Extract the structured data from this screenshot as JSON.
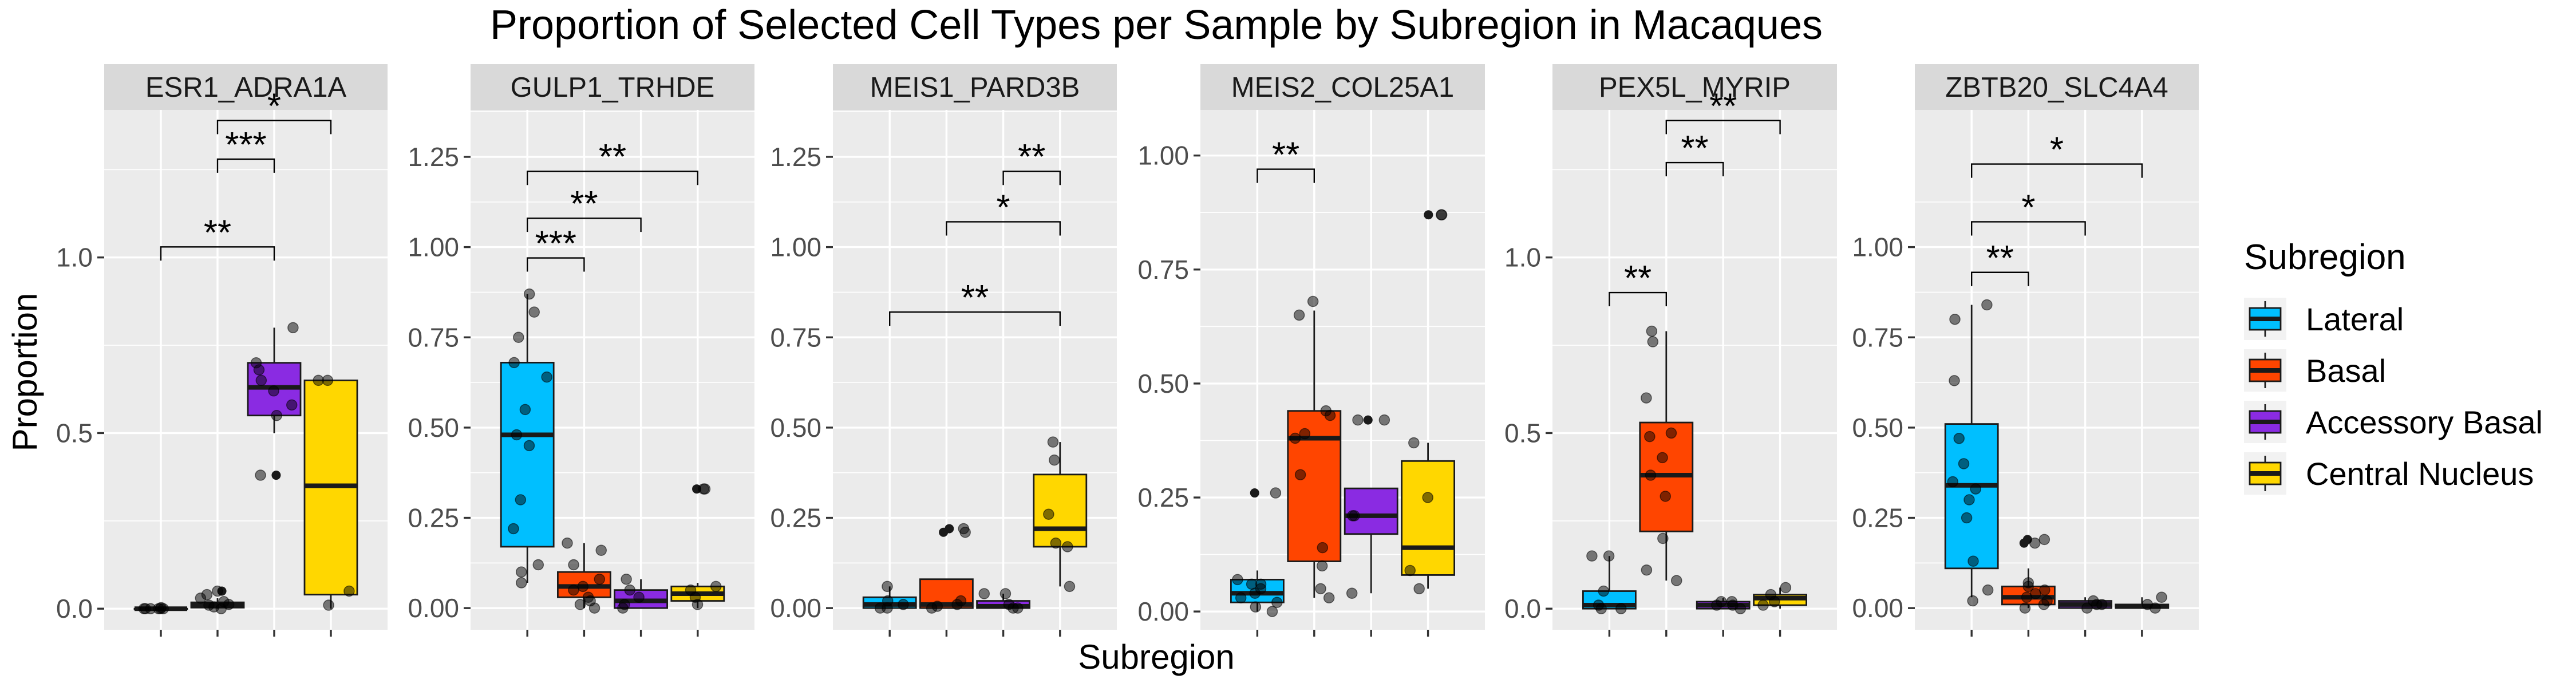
{
  "chart_data": {
    "type": "boxplot",
    "title": "Proportion of Selected Cell Types per Sample by Subregion in Macaques",
    "xlabel": "Subregion",
    "ylabel": "Proportion",
    "legend": {
      "title": "Subregion",
      "position": "right",
      "entries": [
        {
          "name": "Lateral",
          "color": "#00BFFF"
        },
        {
          "name": "Basal",
          "color": "#FF4500"
        },
        {
          "name": "Accessory Basal",
          "color": "#8A2BE2"
        },
        {
          "name": "Central Nucleus",
          "color": "#FFD700"
        }
      ]
    },
    "categories": [
      "Lateral",
      "Basal",
      "Accessory Basal",
      "Central Nucleus"
    ],
    "grid": true,
    "panels": [
      {
        "name": "ESR1_ADRA1A",
        "ylim": [
          -0.06,
          1.42
        ],
        "yticks": [
          0.0,
          0.5,
          1.0
        ],
        "ytick_labels": [
          "0.0",
          "0.5",
          "1.0"
        ],
        "boxes": [
          {
            "q1": 0.0,
            "median": 0.0,
            "q3": 0.0,
            "whisker_low": 0.0,
            "whisker_high": 0.0
          },
          {
            "q1": 0.003,
            "median": 0.01,
            "q3": 0.018,
            "whisker_low": 0.0,
            "whisker_high": 0.03
          },
          {
            "q1": 0.55,
            "median": 0.63,
            "q3": 0.7,
            "whisker_low": 0.5,
            "whisker_high": 0.8
          },
          {
            "q1": 0.04,
            "median": 0.35,
            "q3": 0.65,
            "whisker_low": 0.0,
            "whisker_high": 0.65
          }
        ],
        "outliers": [
          [],
          [
            0.05
          ],
          [
            0.38
          ],
          []
        ],
        "points": [
          [
            0.0,
            0.0,
            0.0,
            0.0,
            0.0,
            0.003,
            0.0
          ],
          [
            0.0,
            0.005,
            0.01,
            0.012,
            0.02,
            0.03,
            0.05,
            0.04
          ],
          [
            0.38,
            0.55,
            0.62,
            0.65,
            0.7,
            0.58,
            0.8,
            0.68
          ],
          [
            0.01,
            0.05,
            0.65,
            0.65
          ]
        ],
        "comparisons": [
          {
            "from": 0,
            "to": 2,
            "y": 1.03,
            "label": "**"
          },
          {
            "from": 1,
            "to": 2,
            "y": 1.28,
            "label": "***"
          },
          {
            "from": 1,
            "to": 3,
            "y": 1.39,
            "label": "*"
          }
        ]
      },
      {
        "name": "GULP1_TRHDE",
        "ylim": [
          -0.06,
          1.38
        ],
        "yticks": [
          0.0,
          0.25,
          0.5,
          0.75,
          1.0,
          1.25
        ],
        "ytick_labels": [
          "0.00",
          "0.25",
          "0.50",
          "0.75",
          "1.00",
          "1.25"
        ],
        "boxes": [
          {
            "q1": 0.17,
            "median": 0.48,
            "q3": 0.68,
            "whisker_low": 0.07,
            "whisker_high": 0.87
          },
          {
            "q1": 0.03,
            "median": 0.06,
            "q3": 0.1,
            "whisker_low": 0.0,
            "whisker_high": 0.18
          },
          {
            "q1": 0.0,
            "median": 0.02,
            "q3": 0.05,
            "whisker_low": 0.0,
            "whisker_high": 0.08
          },
          {
            "q1": 0.02,
            "median": 0.04,
            "q3": 0.06,
            "whisker_low": 0.0,
            "whisker_high": 0.07
          }
        ],
        "outliers": [
          [],
          [],
          [],
          [
            0.33
          ]
        ],
        "points": [
          [
            0.87,
            0.82,
            0.75,
            0.68,
            0.64,
            0.55,
            0.48,
            0.45,
            0.3,
            0.22,
            0.12,
            0.07,
            0.1
          ],
          [
            0.18,
            0.16,
            0.12,
            0.08,
            0.06,
            0.05,
            0.03,
            0.01,
            0.0,
            0.02
          ],
          [
            0.08,
            0.05,
            0.03,
            0.01,
            0.0
          ],
          [
            0.33,
            0.33,
            0.06,
            0.05,
            0.03,
            0.01
          ]
        ],
        "comparisons": [
          {
            "from": 0,
            "to": 1,
            "y": 0.97,
            "label": "***"
          },
          {
            "from": 0,
            "to": 2,
            "y": 1.08,
            "label": "**"
          },
          {
            "from": 0,
            "to": 3,
            "y": 1.21,
            "label": "**"
          }
        ]
      },
      {
        "name": "MEIS1_PARD3B",
        "ylim": [
          -0.06,
          1.38
        ],
        "yticks": [
          0.0,
          0.25,
          0.5,
          0.75,
          1.0,
          1.25
        ],
        "ytick_labels": [
          "0.00",
          "0.25",
          "0.50",
          "0.75",
          "1.00",
          "1.25"
        ],
        "boxes": [
          {
            "q1": 0.0,
            "median": 0.01,
            "q3": 0.03,
            "whisker_low": 0.0,
            "whisker_high": 0.06
          },
          {
            "q1": 0.0,
            "median": 0.01,
            "q3": 0.08,
            "whisker_low": 0.0,
            "whisker_high": 0.08
          },
          {
            "q1": 0.0,
            "median": 0.005,
            "q3": 0.02,
            "whisker_low": 0.0,
            "whisker_high": 0.04
          },
          {
            "q1": 0.17,
            "median": 0.22,
            "q3": 0.37,
            "whisker_low": 0.06,
            "whisker_high": 0.46
          }
        ],
        "outliers": [
          [],
          [
            0.21,
            0.22
          ],
          [],
          []
        ],
        "points": [
          [
            0.0,
            0.01,
            0.02,
            0.06,
            0.0
          ],
          [
            0.0,
            0.005,
            0.01,
            0.02,
            0.21,
            0.22
          ],
          [
            0.0,
            0.0,
            0.01,
            0.04,
            0.04
          ],
          [
            0.46,
            0.41,
            0.26,
            0.18,
            0.17,
            0.06
          ]
        ],
        "comparisons": [
          {
            "from": 0,
            "to": 3,
            "y": 0.82,
            "label": "**"
          },
          {
            "from": 1,
            "to": 3,
            "y": 1.07,
            "label": "*"
          },
          {
            "from": 2,
            "to": 3,
            "y": 1.21,
            "label": "**"
          }
        ]
      },
      {
        "name": "MEIS2_COL25A1",
        "ylim": [
          -0.04,
          1.1
        ],
        "yticks": [
          0.0,
          0.25,
          0.5,
          0.75,
          1.0
        ],
        "ytick_labels": [
          "0.00",
          "0.25",
          "0.50",
          "0.75",
          "1.00"
        ],
        "boxes": [
          {
            "q1": 0.02,
            "median": 0.04,
            "q3": 0.07,
            "whisker_low": 0.0,
            "whisker_high": 0.09
          },
          {
            "q1": 0.11,
            "median": 0.38,
            "q3": 0.44,
            "whisker_low": 0.03,
            "whisker_high": 0.66
          },
          {
            "q1": 0.17,
            "median": 0.21,
            "q3": 0.27,
            "whisker_low": 0.04,
            "whisker_high": 0.27
          },
          {
            "q1": 0.08,
            "median": 0.14,
            "q3": 0.33,
            "whisker_low": 0.05,
            "whisker_high": 0.37
          }
        ],
        "outliers": [
          [
            0.26
          ],
          [],
          [
            0.42
          ],
          [
            0.87
          ]
        ],
        "points": [
          [
            0.26,
            0.07,
            0.06,
            0.05,
            0.04,
            0.03,
            0.02,
            0.01,
            0.0,
            0.06
          ],
          [
            0.68,
            0.65,
            0.44,
            0.43,
            0.39,
            0.38,
            0.3,
            0.14,
            0.1,
            0.05,
            0.03
          ],
          [
            0.42,
            0.42,
            0.21,
            0.21,
            0.04
          ],
          [
            0.87,
            0.87,
            0.37,
            0.25,
            0.09,
            0.05
          ]
        ],
        "comparisons": [
          {
            "from": 0,
            "to": 1,
            "y": 0.97,
            "label": "**"
          }
        ]
      },
      {
        "name": "PEX5L_MYRIP",
        "ylim": [
          -0.06,
          1.42
        ],
        "yticks": [
          0.0,
          0.5,
          1.0
        ],
        "ytick_labels": [
          "0.0",
          "0.5",
          "1.0"
        ],
        "boxes": [
          {
            "q1": 0.0,
            "median": 0.01,
            "q3": 0.05,
            "whisker_low": 0.0,
            "whisker_high": 0.15
          },
          {
            "q1": 0.22,
            "median": 0.38,
            "q3": 0.53,
            "whisker_low": 0.08,
            "whisker_high": 0.79
          },
          {
            "q1": 0.0,
            "median": 0.01,
            "q3": 0.02,
            "whisker_low": 0.0,
            "whisker_high": 0.03
          },
          {
            "q1": 0.01,
            "median": 0.03,
            "q3": 0.04,
            "whisker_low": 0.0,
            "whisker_high": 0.06
          }
        ],
        "outliers": [
          [],
          [],
          [],
          []
        ],
        "points": [
          [
            0.15,
            0.15,
            0.05,
            0.01,
            0.0,
            0.0
          ],
          [
            0.79,
            0.76,
            0.6,
            0.5,
            0.49,
            0.43,
            0.38,
            0.32,
            0.2,
            0.11,
            0.08
          ],
          [
            0.02,
            0.01,
            0.01,
            0.0,
            0.02
          ],
          [
            0.06,
            0.04,
            0.02,
            0.01
          ]
        ],
        "comparisons": [
          {
            "from": 0,
            "to": 1,
            "y": 0.9,
            "label": "**"
          },
          {
            "from": 1,
            "to": 2,
            "y": 1.27,
            "label": "**"
          },
          {
            "from": 1,
            "to": 3,
            "y": 1.39,
            "label": "**"
          }
        ]
      },
      {
        "name": "ZBTB20_SLC4A4",
        "ylim": [
          -0.06,
          1.38
        ],
        "yticks": [
          0.0,
          0.25,
          0.5,
          0.75,
          1.0
        ],
        "ytick_labels": [
          "0.00",
          "0.25",
          "0.50",
          "0.75",
          "1.00"
        ],
        "boxes": [
          {
            "q1": 0.11,
            "median": 0.34,
            "q3": 0.51,
            "whisker_low": 0.03,
            "whisker_high": 0.84
          },
          {
            "q1": 0.01,
            "median": 0.03,
            "q3": 0.06,
            "whisker_low": 0.0,
            "whisker_high": 0.11
          },
          {
            "q1": 0.0,
            "median": 0.01,
            "q3": 0.02,
            "whisker_low": 0.0,
            "whisker_high": 0.03
          },
          {
            "q1": 0.0,
            "median": 0.005,
            "q3": 0.01,
            "whisker_low": 0.0,
            "whisker_high": 0.03
          }
        ],
        "outliers": [
          [],
          [
            0.19,
            0.18
          ],
          [],
          []
        ],
        "points": [
          [
            0.84,
            0.8,
            0.63,
            0.47,
            0.4,
            0.35,
            0.33,
            0.3,
            0.25,
            0.13,
            0.05,
            0.02
          ],
          [
            0.19,
            0.18,
            0.07,
            0.05,
            0.04,
            0.03,
            0.02,
            0.01,
            0.0,
            0.06
          ],
          [
            0.02,
            0.01,
            0.01,
            0.0
          ],
          [
            0.03,
            0.01,
            0.0
          ]
        ],
        "comparisons": [
          {
            "from": 0,
            "to": 1,
            "y": 0.93,
            "label": "**"
          },
          {
            "from": 0,
            "to": 2,
            "y": 1.07,
            "label": "*"
          },
          {
            "from": 0,
            "to": 3,
            "y": 1.23,
            "label": "*"
          }
        ]
      }
    ]
  }
}
